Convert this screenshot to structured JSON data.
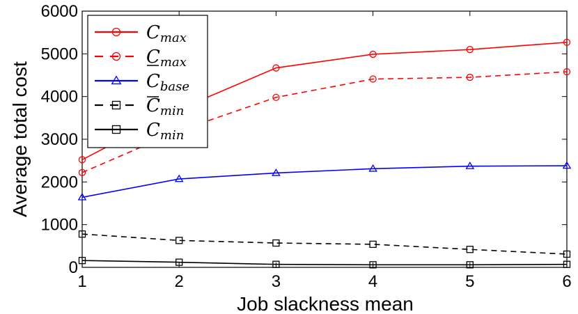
{
  "chart_data": {
    "type": "line",
    "xlabel": "Job slackness mean",
    "ylabel": "Average total cost",
    "x": [
      1,
      2,
      3,
      4,
      5,
      6
    ],
    "xlim": [
      1,
      6
    ],
    "ylim": [
      0,
      6000
    ],
    "xticks": [
      "1",
      "2",
      "3",
      "4",
      "5",
      "6"
    ],
    "yticks": [
      "0",
      "1000",
      "2000",
      "3000",
      "4000",
      "5000",
      "6000"
    ],
    "grid": false,
    "legend_position": "top-left",
    "series": [
      {
        "name_main": "C",
        "name_sub": "max",
        "overline": false,
        "underline": false,
        "color": "#ff0000",
        "dash": "solid",
        "marker": "circle",
        "values": [
          2520,
          3700,
          4670,
          4990,
          5100,
          5270
        ]
      },
      {
        "name_main": "C",
        "name_sub": "max",
        "overline": false,
        "underline": true,
        "color": "#ff0000",
        "dash": "dashed",
        "marker": "circle",
        "values": [
          2220,
          3200,
          3980,
          4410,
          4450,
          4580
        ]
      },
      {
        "name_main": "C",
        "name_sub": "base",
        "overline": false,
        "underline": false,
        "color": "#0000ff",
        "dash": "solid",
        "marker": "triangle",
        "values": [
          1640,
          2070,
          2210,
          2310,
          2370,
          2380
        ]
      },
      {
        "name_main": "C",
        "name_sub": "min",
        "overline": true,
        "underline": false,
        "color": "#000000",
        "dash": "dashed",
        "marker": "square",
        "values": [
          780,
          630,
          570,
          540,
          420,
          310
        ]
      },
      {
        "name_main": "C",
        "name_sub": "min",
        "overline": false,
        "underline": false,
        "color": "#000000",
        "dash": "solid",
        "marker": "square",
        "values": [
          160,
          120,
          70,
          60,
          60,
          70
        ]
      }
    ]
  }
}
